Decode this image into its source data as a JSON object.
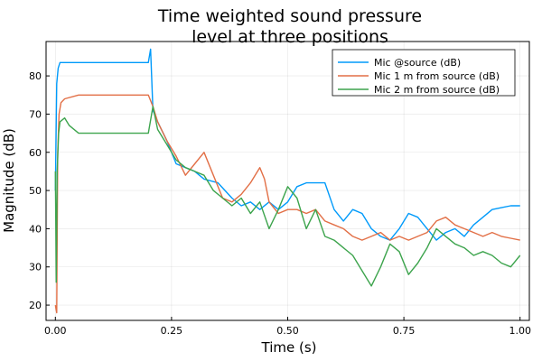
{
  "chart_data": {
    "type": "line",
    "title_lines": [
      "Time weighted sound pressure",
      "level at three positions"
    ],
    "xlabel": "Time (s)",
    "ylabel": "Magnitude (dB)",
    "xlim": [
      -0.02,
      1.02
    ],
    "ylim": [
      16,
      89
    ],
    "x_ticks": [
      0.0,
      0.25,
      0.5,
      0.75,
      1.0
    ],
    "x_tick_labels": [
      "0.00",
      "0.25",
      "0.50",
      "0.75",
      "1.00"
    ],
    "y_ticks": [
      20,
      30,
      40,
      50,
      60,
      70,
      80
    ],
    "y_tick_labels": [
      "20",
      "30",
      "40",
      "50",
      "60",
      "70",
      "80"
    ],
    "grid": true,
    "legend_position": "top-right",
    "series": [
      {
        "name": "Mic @source (dB)",
        "color": "#009AFA",
        "x": [
          0.0,
          0.003,
          0.006,
          0.01,
          0.02,
          0.05,
          0.1,
          0.15,
          0.2,
          0.205,
          0.21,
          0.22,
          0.24,
          0.26,
          0.28,
          0.3,
          0.32,
          0.35,
          0.38,
          0.4,
          0.42,
          0.44,
          0.46,
          0.48,
          0.5,
          0.52,
          0.54,
          0.56,
          0.58,
          0.6,
          0.62,
          0.64,
          0.66,
          0.68,
          0.7,
          0.72,
          0.74,
          0.76,
          0.78,
          0.8,
          0.82,
          0.84,
          0.86,
          0.88,
          0.9,
          0.92,
          0.94,
          0.96,
          0.98,
          1.0
        ],
        "values": [
          50,
          78,
          82,
          83.5,
          83.5,
          83.5,
          83.5,
          83.5,
          83.5,
          87,
          71,
          68,
          63,
          57,
          56,
          55,
          53,
          52,
          48,
          46,
          47,
          45,
          47,
          45,
          47,
          51,
          52,
          52,
          52,
          45,
          42,
          45,
          44,
          40,
          38,
          37,
          40,
          44,
          43,
          40,
          37,
          39,
          40,
          38,
          41,
          43,
          45,
          45.5,
          46,
          46
        ]
      },
      {
        "name": "Mic 1 m from source (dB)",
        "color": "#E26F46",
        "x": [
          0.0,
          0.003,
          0.005,
          0.008,
          0.012,
          0.02,
          0.05,
          0.1,
          0.15,
          0.2,
          0.21,
          0.22,
          0.24,
          0.26,
          0.28,
          0.3,
          0.32,
          0.34,
          0.36,
          0.38,
          0.4,
          0.42,
          0.44,
          0.45,
          0.46,
          0.48,
          0.5,
          0.52,
          0.54,
          0.56,
          0.58,
          0.6,
          0.62,
          0.64,
          0.66,
          0.68,
          0.7,
          0.72,
          0.74,
          0.76,
          0.78,
          0.8,
          0.82,
          0.84,
          0.86,
          0.88,
          0.9,
          0.92,
          0.94,
          0.96,
          0.98,
          1.0
        ],
        "values": [
          20,
          18,
          60,
          70,
          73,
          74,
          75,
          75,
          75,
          75,
          72,
          68,
          63,
          59,
          54,
          57,
          60,
          54,
          48,
          47,
          49,
          52,
          56,
          53,
          47,
          44,
          45,
          45,
          44,
          45,
          42,
          41,
          40,
          38,
          37,
          38,
          39,
          37,
          38,
          37,
          38,
          39,
          42,
          43,
          41,
          40,
          39,
          38,
          39,
          38,
          37.5,
          37
        ]
      },
      {
        "name": "Mic 2 m from source (dB)",
        "color": "#3DA44D",
        "x": [
          0.0,
          0.002,
          0.004,
          0.007,
          0.01,
          0.02,
          0.03,
          0.05,
          0.1,
          0.15,
          0.2,
          0.21,
          0.22,
          0.24,
          0.26,
          0.28,
          0.3,
          0.32,
          0.34,
          0.36,
          0.38,
          0.4,
          0.42,
          0.44,
          0.46,
          0.48,
          0.5,
          0.52,
          0.54,
          0.56,
          0.58,
          0.6,
          0.62,
          0.64,
          0.66,
          0.68,
          0.7,
          0.72,
          0.74,
          0.76,
          0.78,
          0.8,
          0.82,
          0.84,
          0.86,
          0.88,
          0.9,
          0.92,
          0.94,
          0.96,
          0.98,
          1.0
        ],
        "values": [
          55,
          26,
          55,
          65,
          68,
          69,
          67,
          65,
          65,
          65,
          65,
          72,
          66,
          62,
          58,
          56,
          55,
          54,
          50,
          48,
          46,
          48,
          44,
          47,
          40,
          45,
          51,
          48,
          40,
          45,
          38,
          37,
          35,
          33,
          29,
          25,
          30,
          36,
          34,
          28,
          31,
          35,
          40,
          38,
          36,
          35,
          33,
          34,
          33,
          31,
          30,
          33
        ]
      }
    ]
  }
}
